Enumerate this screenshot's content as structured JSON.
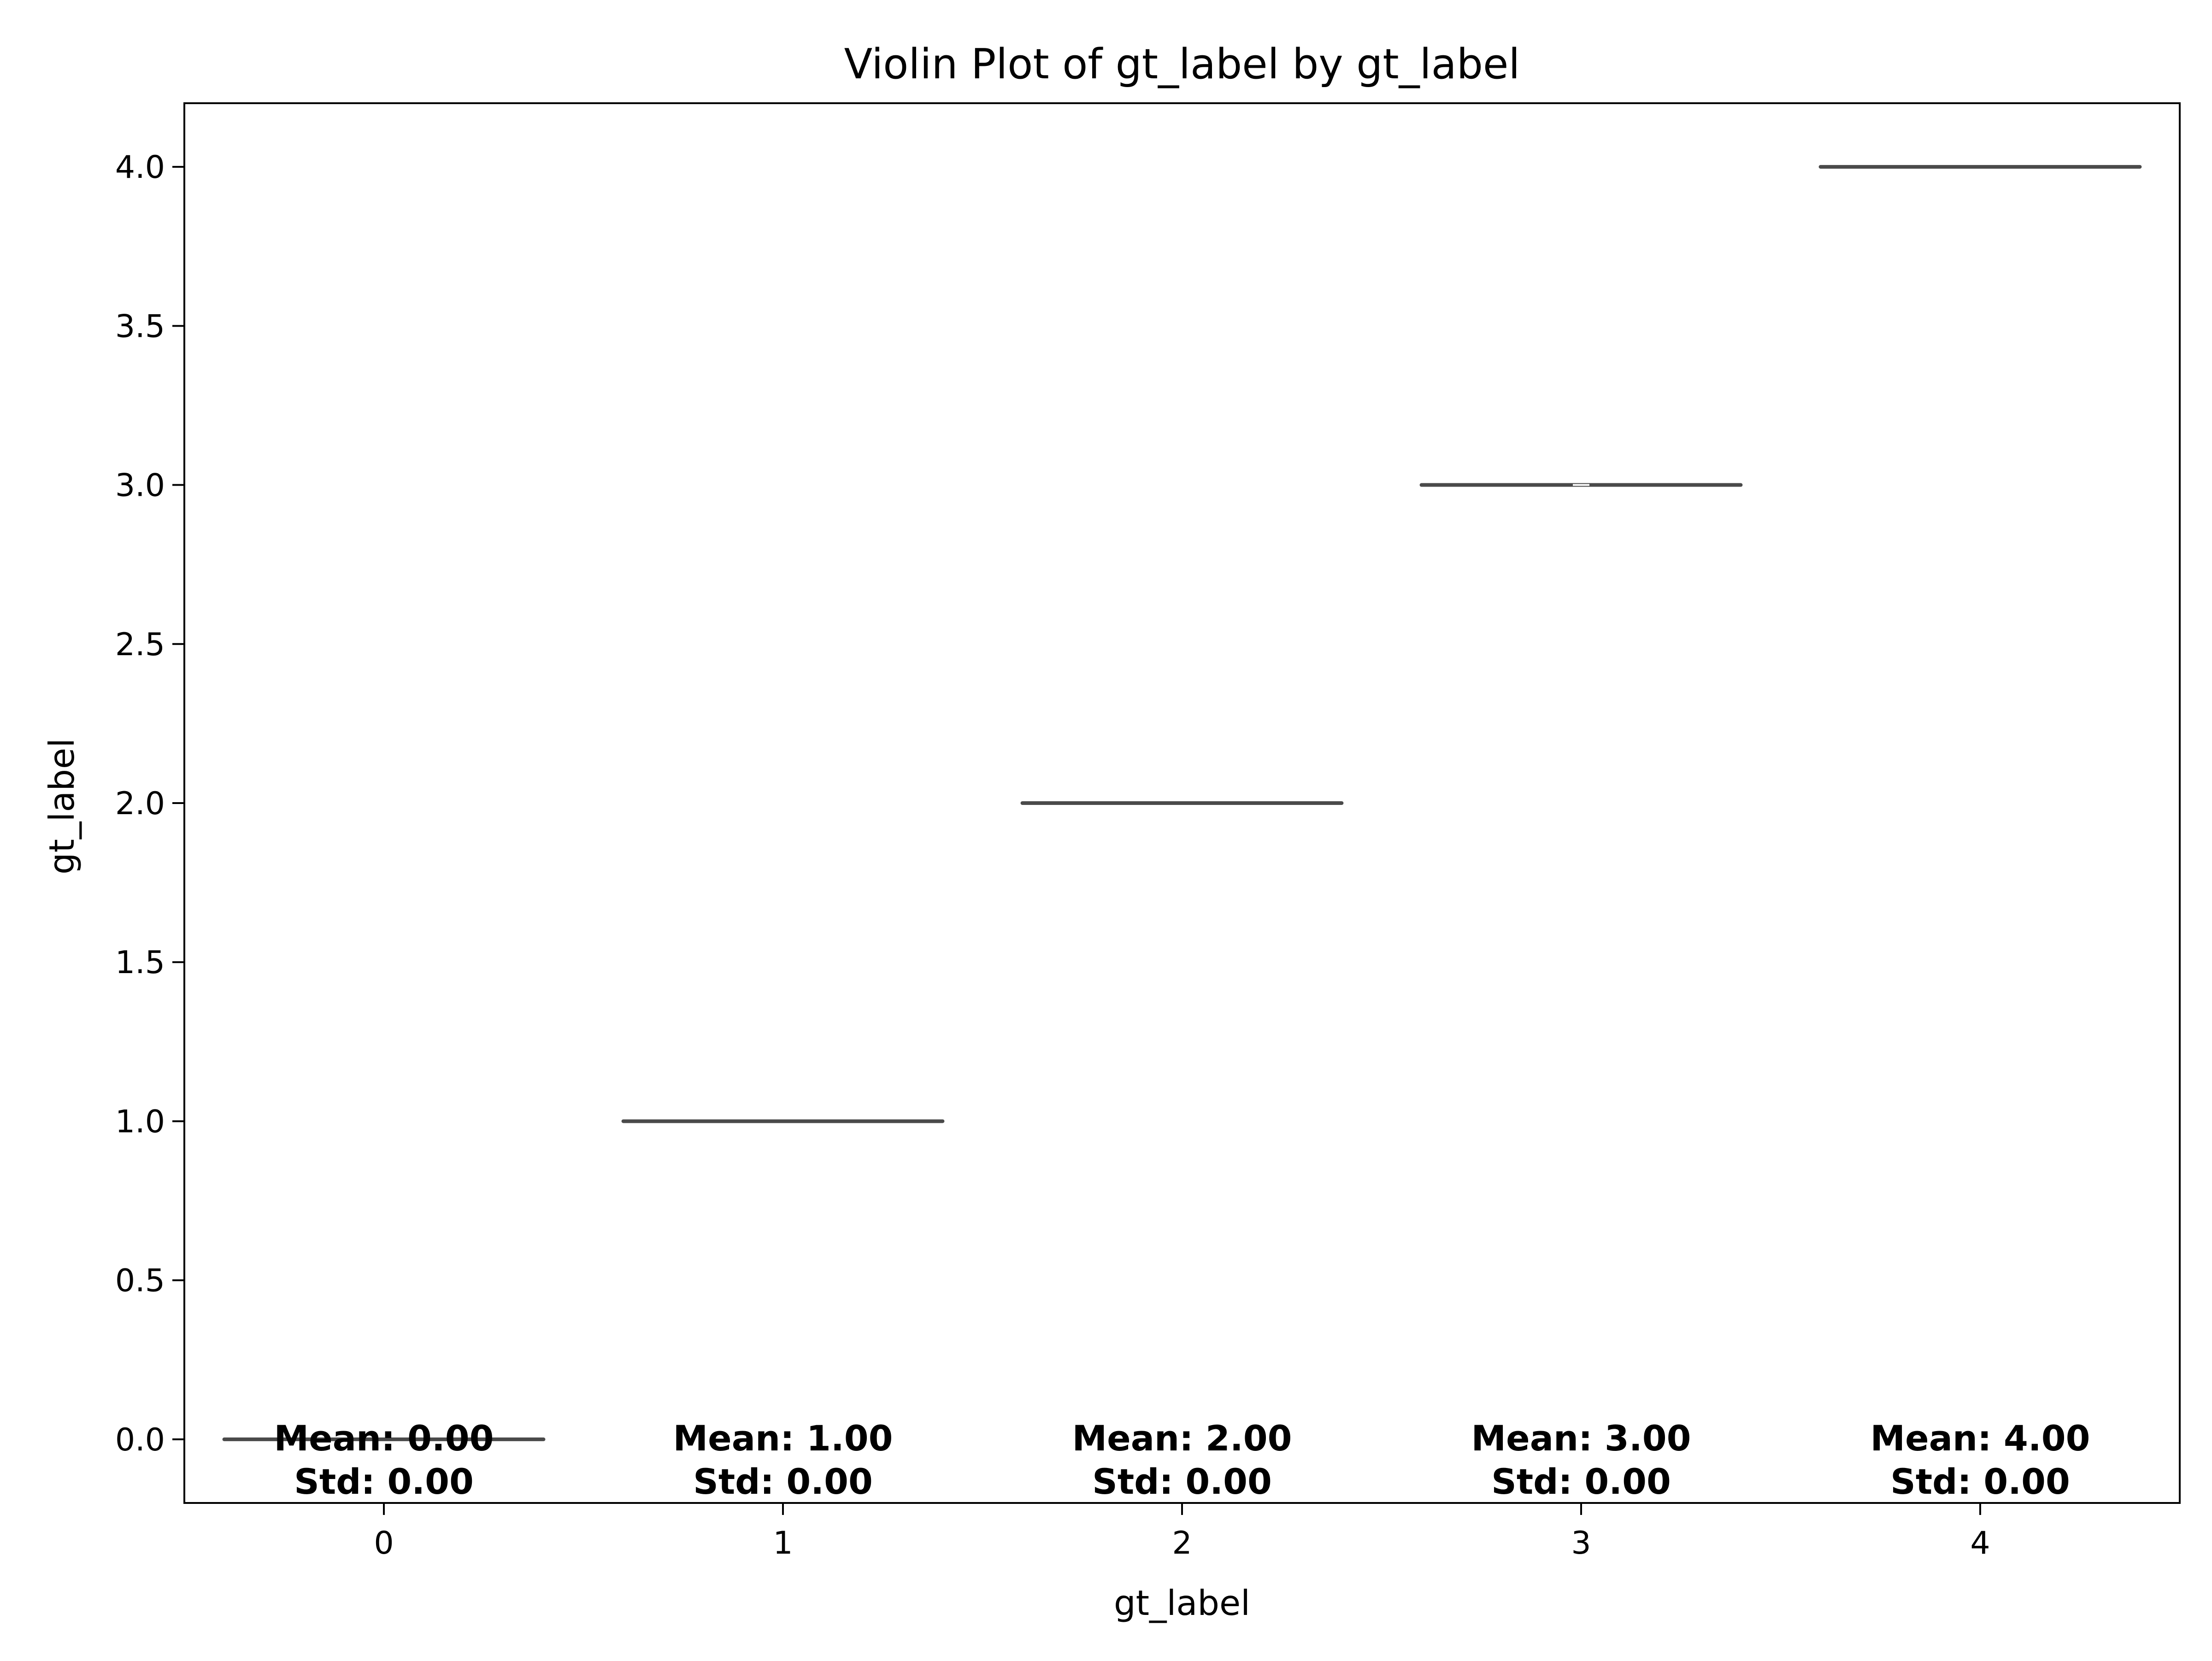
{
  "chart_data": {
    "type": "violin",
    "title": "Violin Plot of gt_label by gt_label",
    "xlabel": "gt_label",
    "ylabel": "gt_label",
    "categories": [
      "0",
      "1",
      "2",
      "3",
      "4"
    ],
    "values": [
      0.0,
      1.0,
      2.0,
      3.0,
      4.0
    ],
    "ylim": [
      -0.2,
      4.2
    ],
    "yticks": [
      0.0,
      0.5,
      1.0,
      1.5,
      2.0,
      2.5,
      3.0,
      3.5,
      4.0
    ],
    "ytick_labels": [
      "0.0",
      "0.5",
      "1.0",
      "1.5",
      "2.0",
      "2.5",
      "3.0",
      "3.5",
      "4.0"
    ],
    "annotations": [
      {
        "mean": "Mean: 0.00",
        "std": "Std: 0.00"
      },
      {
        "mean": "Mean: 1.00",
        "std": "Std: 0.00"
      },
      {
        "mean": "Mean: 2.00",
        "std": "Std: 0.00"
      },
      {
        "mean": "Mean: 3.00",
        "std": "Std: 0.00"
      },
      {
        "mean": "Mean: 4.00",
        "std": "Std: 0.00"
      }
    ],
    "grid": false,
    "colors": {
      "violin_line": "#4a4a4a",
      "axes": "#000000"
    }
  }
}
